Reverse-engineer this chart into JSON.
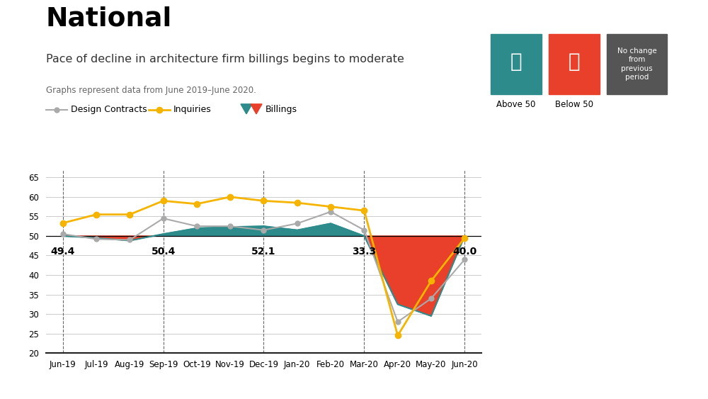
{
  "months": [
    "Jun-19",
    "Jul-19",
    "Aug-19",
    "Sep-19",
    "Oct-19",
    "Nov-19",
    "Dec-19",
    "Jan-20",
    "Feb-20",
    "Mar-20",
    "Apr-20",
    "May-20",
    "Jun-20"
  ],
  "design_contracts": [
    50.5,
    49.2,
    49.0,
    54.5,
    52.5,
    52.5,
    51.5,
    53.2,
    56.2,
    51.5,
    28.0,
    34.0,
    44.0
  ],
  "inquiries": [
    53.3,
    55.5,
    55.5,
    59.0,
    58.2,
    60.0,
    59.0,
    58.5,
    57.5,
    56.5,
    24.5,
    38.5,
    49.5
  ],
  "billings": [
    50.0,
    49.5,
    48.8,
    50.5,
    52.0,
    52.3,
    52.5,
    51.5,
    53.2,
    50.0,
    32.5,
    29.5,
    50.0
  ],
  "color_teal": "#2e8b8b",
  "color_red": "#e8402a",
  "color_gray": "#aaaaaa",
  "color_yellow": "#f5b400",
  "annotation_labels": [
    "49.4",
    "50.4",
    "52.1",
    "33.3",
    "40.0"
  ],
  "annotation_x_idx": [
    0,
    3,
    6,
    9,
    12
  ],
  "dashed_x_idx": [
    0,
    3,
    6,
    9,
    12
  ],
  "ylim": [
    20,
    67
  ],
  "yticks": [
    20,
    25,
    30,
    35,
    40,
    45,
    50,
    55,
    60,
    65
  ],
  "title": "National",
  "subtitle": "Pace of decline in architecture firm billings begins to moderate",
  "data_note": "Graphs represent data from June 2019–June 2020.",
  "bg_color": "#ffffff"
}
